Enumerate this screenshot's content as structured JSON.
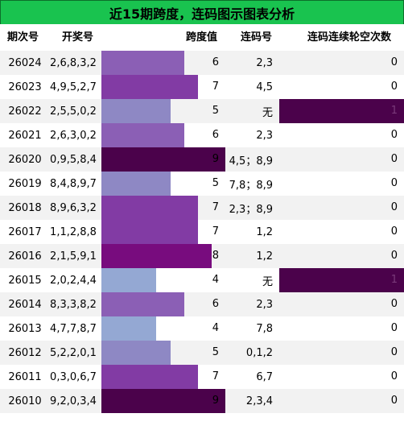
{
  "title": "近15期跨度，连码图示图表分析",
  "headers": {
    "qi": "期次号",
    "kaijiang": "开奖号",
    "kuadu": "跨度值",
    "lianma": "连码号",
    "omission": "连码连续轮空次数"
  },
  "colors": {
    "span4": "#94a8d3",
    "span5": "#8e88c4",
    "span6": "#8b5fb5",
    "span7": "#823ba4",
    "span8": "#780c7e",
    "span9": "#4b024b",
    "omission_bar": "#4b024b"
  },
  "rows": [
    {
      "qi": "26024",
      "kaijiang": "2,6,8,3,2",
      "kuadu": 6,
      "lianma": "2,3",
      "omission": 0
    },
    {
      "qi": "26023",
      "kaijiang": "4,9,5,2,7",
      "kuadu": 7,
      "lianma": "4,5",
      "omission": 0
    },
    {
      "qi": "26022",
      "kaijiang": "2,5,5,0,2",
      "kuadu": 5,
      "lianma": "无",
      "omission": 1
    },
    {
      "qi": "26021",
      "kaijiang": "2,6,3,0,2",
      "kuadu": 6,
      "lianma": "2,3",
      "omission": 0
    },
    {
      "qi": "26020",
      "kaijiang": "0,9,5,8,4",
      "kuadu": 9,
      "lianma": "4,5；8,9",
      "omission": 0
    },
    {
      "qi": "26019",
      "kaijiang": "8,4,8,9,7",
      "kuadu": 5,
      "lianma": "7,8；8,9",
      "omission": 0
    },
    {
      "qi": "26018",
      "kaijiang": "8,9,6,3,2",
      "kuadu": 7,
      "lianma": "2,3；8,9",
      "omission": 0
    },
    {
      "qi": "26017",
      "kaijiang": "1,1,2,8,8",
      "kuadu": 7,
      "lianma": "1,2",
      "omission": 0
    },
    {
      "qi": "26016",
      "kaijiang": "2,1,5,9,1",
      "kuadu": 8,
      "lianma": "1,2",
      "omission": 0
    },
    {
      "qi": "26015",
      "kaijiang": "2,0,2,4,4",
      "kuadu": 4,
      "lianma": "无",
      "omission": 1
    },
    {
      "qi": "26014",
      "kaijiang": "8,3,3,8,2",
      "kuadu": 6,
      "lianma": "2,3",
      "omission": 0
    },
    {
      "qi": "26013",
      "kaijiang": "4,7,7,8,7",
      "kuadu": 4,
      "lianma": "7,8",
      "omission": 0
    },
    {
      "qi": "26012",
      "kaijiang": "5,2,2,0,1",
      "kuadu": 5,
      "lianma": "0,1,2",
      "omission": 0
    },
    {
      "qi": "26011",
      "kaijiang": "0,3,0,6,7",
      "kuadu": 7,
      "lianma": "6,7",
      "omission": 0
    },
    {
      "qi": "26010",
      "kaijiang": "9,2,0,3,4",
      "kuadu": 9,
      "lianma": "2,3,4",
      "omission": 0
    }
  ]
}
